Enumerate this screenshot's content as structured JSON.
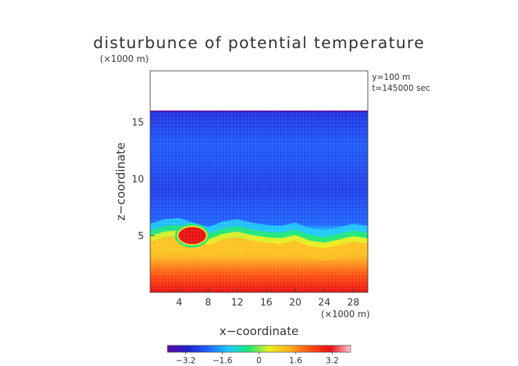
{
  "chart_data": {
    "type": "heatmap",
    "title": "disturbunce of potential temperature",
    "y_unit_label": "(×1000 m)",
    "x_unit_label": "(×1000 m)",
    "xlabel": "x−coordinate",
    "ylabel": "z−coordinate",
    "info_lines": [
      "y=100 m",
      "t=145000 sec"
    ],
    "x_range": [
      0,
      30
    ],
    "y_range": [
      0,
      19.5
    ],
    "x_ticks": [
      4,
      8,
      12,
      16,
      20,
      24,
      28
    ],
    "x_tick_labels": [
      "4",
      "8",
      "12",
      "16",
      "20",
      "24",
      "28"
    ],
    "y_ticks": [
      5,
      10,
      15
    ],
    "y_tick_labels": [
      "5",
      "10",
      "15"
    ],
    "data_top_z": 16.0,
    "interface_profile": {
      "x": [
        0,
        2,
        4,
        6,
        8,
        10,
        12,
        14,
        16,
        18,
        20,
        22,
        24,
        26,
        28,
        30
      ],
      "z": [
        5.2,
        5.6,
        5.7,
        5.3,
        4.9,
        5.4,
        5.6,
        5.3,
        5.1,
        5.0,
        5.3,
        4.8,
        4.6,
        4.9,
        5.2,
        5.0
      ]
    },
    "warm_bubble": {
      "center_x": 5.8,
      "center_z": 5.0,
      "radius_x": 1.9,
      "radius_z": 0.75,
      "peak": -2.0
    },
    "colorbar": {
      "min": -4.0,
      "max": 4.0,
      "tick_values": [
        -3.2,
        -1.6,
        0,
        1.6,
        3.2
      ],
      "tick_labels": [
        "−3.2",
        "−1.6",
        "0",
        "1.6",
        "3.2"
      ],
      "stops": [
        "#5a0aa0",
        "#2020d0",
        "#1e64ff",
        "#1ec8ff",
        "#1ee878",
        "#e8f020",
        "#ffb020",
        "#ff5010",
        "#e81010",
        "#ffc8d0"
      ]
    },
    "grid": true
  }
}
